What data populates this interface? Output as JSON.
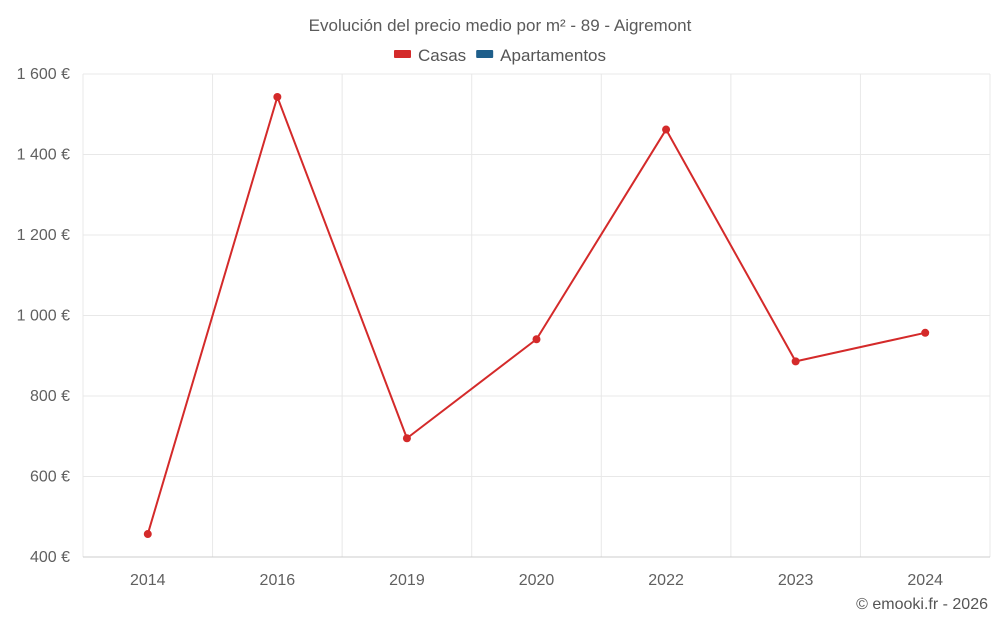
{
  "chart_data": {
    "type": "line",
    "title": "Evolución del precio medio por m² - 89 - Aigremont",
    "categories": [
      "2014",
      "2016",
      "2019",
      "2020",
      "2022",
      "2023",
      "2024"
    ],
    "series": [
      {
        "name": "Casas",
        "color": "#d42a2a",
        "values": [
          457,
          1543,
          695,
          941,
          1462,
          886,
          957
        ]
      },
      {
        "name": "Apartamentos",
        "color": "#1f5f8b",
        "values": [
          null,
          null,
          null,
          null,
          null,
          null,
          null
        ]
      }
    ],
    "ylim": [
      400,
      1600
    ],
    "yticks": [
      400,
      600,
      800,
      1000,
      1200,
      1400,
      1600
    ],
    "ytick_labels": [
      "400 €",
      "600 €",
      "800 €",
      "1 000 €",
      "1 200 €",
      "1 400 €",
      "1 600 €"
    ],
    "xlabel": "",
    "ylabel": "",
    "grid": true,
    "legend": "top-center"
  },
  "credit": "© emooki.fr - 2026"
}
